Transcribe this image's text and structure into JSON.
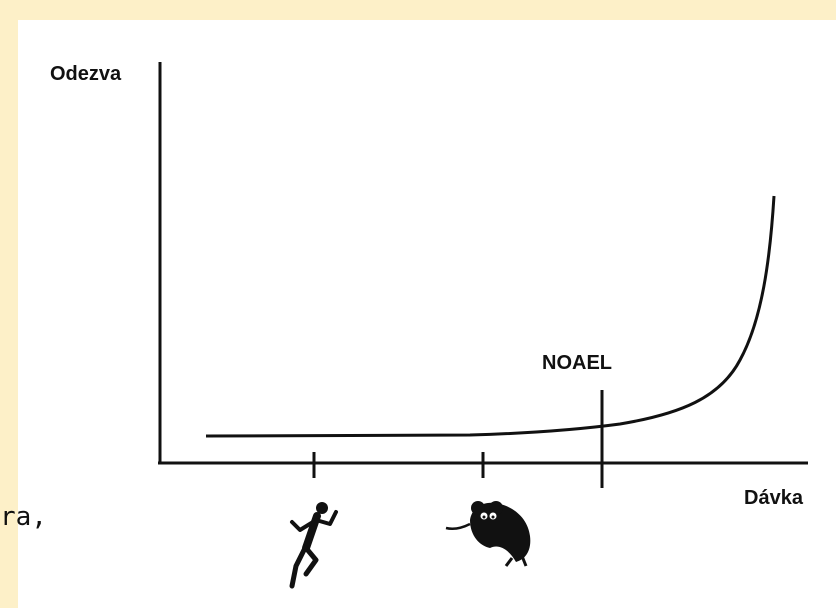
{
  "labels": {
    "y_axis": "Odezva",
    "x_axis": "Dávka",
    "threshold": "NOAEL"
  },
  "partial_text": "ra,",
  "icons": {
    "first_tick": "running-man-icon",
    "second_tick": "rat-icon"
  },
  "colors": {
    "background_band": "#fdf0c8",
    "ink": "#111111"
  }
}
